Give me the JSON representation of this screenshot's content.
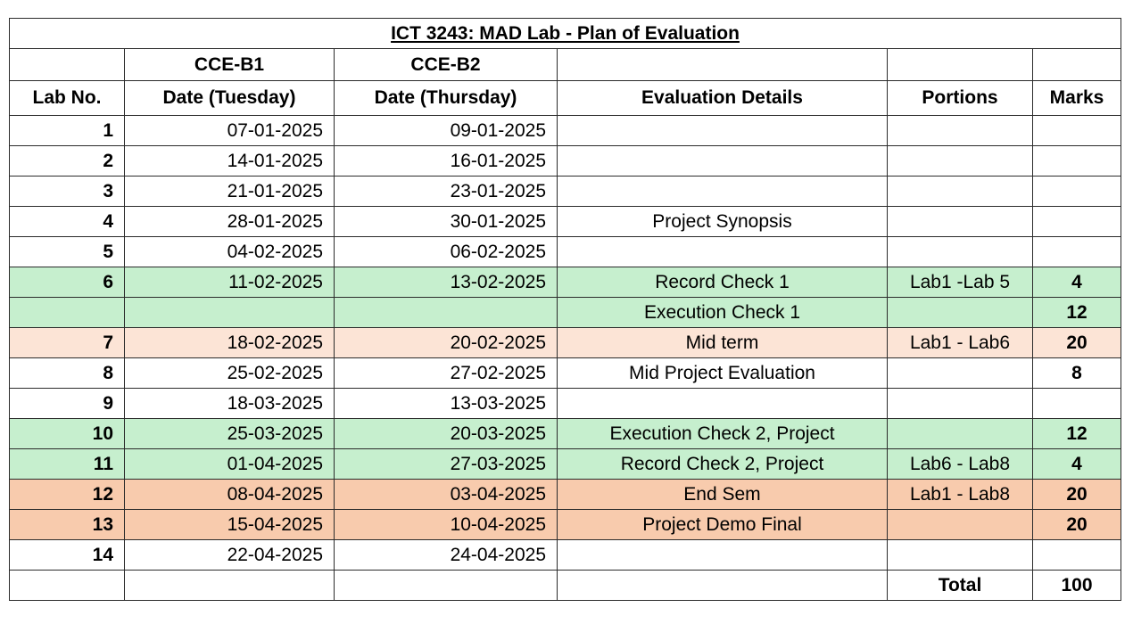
{
  "title": "ICT 3243: MAD Lab - Plan of Evaluation",
  "colors": {
    "green": "#c6efce",
    "light_peach": "#fce4d6",
    "salmon": "#f8cbad",
    "white": "#ffffff",
    "border": "#2b2b2b"
  },
  "header": {
    "group_b1": "CCE-B1",
    "group_b2": "CCE-B2",
    "lab_no": "Lab No.",
    "date_tuesday": "Date (Tuesday)",
    "date_thursday": "Date (Thursday)",
    "evaluation_details": "Evaluation Details",
    "portions": "Portions",
    "marks": "Marks"
  },
  "rows": [
    {
      "lab": "1",
      "b1": "07-01-2025",
      "b2": "09-01-2025",
      "details": "",
      "portions": "",
      "marks": "",
      "fill": "white"
    },
    {
      "lab": "2",
      "b1": "14-01-2025",
      "b2": "16-01-2025",
      "details": "",
      "portions": "",
      "marks": "",
      "fill": "white"
    },
    {
      "lab": "3",
      "b1": "21-01-2025",
      "b2": "23-01-2025",
      "details": "",
      "portions": "",
      "marks": "",
      "fill": "white"
    },
    {
      "lab": "4",
      "b1": "28-01-2025",
      "b2": "30-01-2025",
      "details": "Project Synopsis",
      "portions": "",
      "marks": "",
      "fill": "white"
    },
    {
      "lab": "5",
      "b1": "04-02-2025",
      "b2": "06-02-2025",
      "details": "",
      "portions": "",
      "marks": "",
      "fill": "white"
    },
    {
      "lab": "6",
      "b1": "11-02-2025",
      "b2": "13-02-2025",
      "details": "Record Check 1",
      "portions": "Lab1 -Lab 5",
      "marks": "4",
      "fill": "green"
    },
    {
      "lab": "",
      "b1": "",
      "b2": "",
      "details": "Execution Check 1",
      "portions": "",
      "marks": "12",
      "fill": "green"
    },
    {
      "lab": "7",
      "b1": "18-02-2025",
      "b2": "20-02-2025",
      "details": "Mid term",
      "portions": "Lab1 - Lab6",
      "marks": "20",
      "fill": "light_peach"
    },
    {
      "lab": "8",
      "b1": "25-02-2025",
      "b2": "27-02-2025",
      "details": "Mid Project Evaluation",
      "portions": "",
      "marks": "8",
      "fill": "white"
    },
    {
      "lab": "9",
      "b1": "18-03-2025",
      "b2": "13-03-2025",
      "details": "",
      "portions": "",
      "marks": "",
      "fill": "white"
    },
    {
      "lab": "10",
      "b1": "25-03-2025",
      "b2": "20-03-2025",
      "details": "Execution Check 2, Project",
      "portions": "",
      "marks": "12",
      "fill": "green"
    },
    {
      "lab": "11",
      "b1": "01-04-2025",
      "b2": "27-03-2025",
      "details": "Record Check 2, Project",
      "portions": "Lab6 - Lab8",
      "marks": "4",
      "fill": "green"
    },
    {
      "lab": "12",
      "b1": "08-04-2025",
      "b2": "03-04-2025",
      "details": "End Sem",
      "portions": "Lab1 - Lab8",
      "marks": "20",
      "fill": "salmon"
    },
    {
      "lab": "13",
      "b1": "15-04-2025",
      "b2": "10-04-2025",
      "details": "Project Demo Final",
      "portions": "",
      "marks": "20",
      "fill": "salmon"
    },
    {
      "lab": "14",
      "b1": "22-04-2025",
      "b2": "24-04-2025",
      "details": "",
      "portions": "",
      "marks": "",
      "fill": "white"
    }
  ],
  "footer": {
    "total_label": "Total",
    "total_value": "100"
  }
}
